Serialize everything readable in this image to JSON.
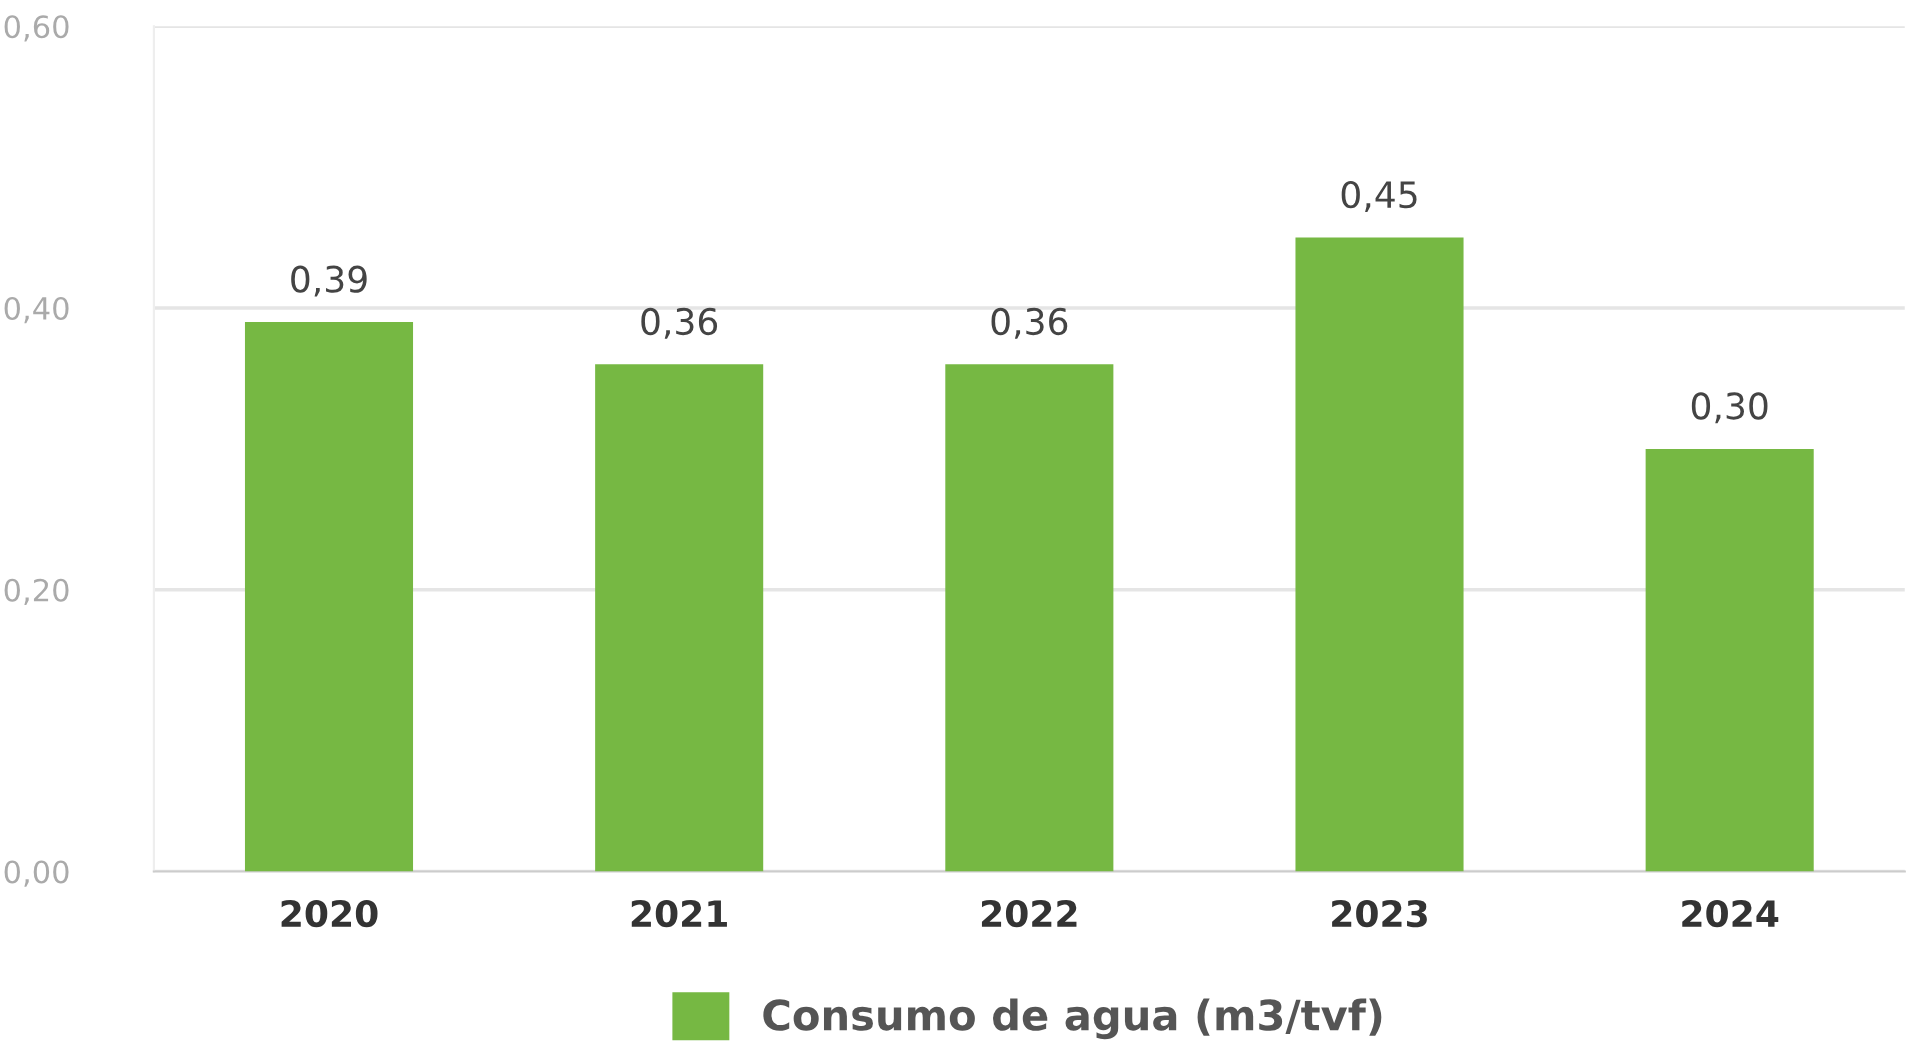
{
  "chart_data": {
    "type": "bar",
    "categories": [
      "2020",
      "2021",
      "2022",
      "2023",
      "2024"
    ],
    "series": [
      {
        "name": "Consumo de agua (m3/tvf)",
        "color": "#76b843",
        "values": [
          0.39,
          0.36,
          0.36,
          0.45,
          0.3
        ]
      }
    ],
    "value_labels": [
      "0,39",
      "0,36",
      "0,36",
      "0,45",
      "0,30"
    ],
    "ylim": [
      0,
      0.6
    ],
    "yticks": [
      {
        "value": 0,
        "label": "0,00"
      },
      {
        "value": 0.2,
        "label": "0,20"
      },
      {
        "value": 0.4,
        "label": "0,40"
      },
      {
        "value": 0.6,
        "label": "0,60"
      }
    ],
    "grid": "y",
    "legend": "bottom"
  }
}
